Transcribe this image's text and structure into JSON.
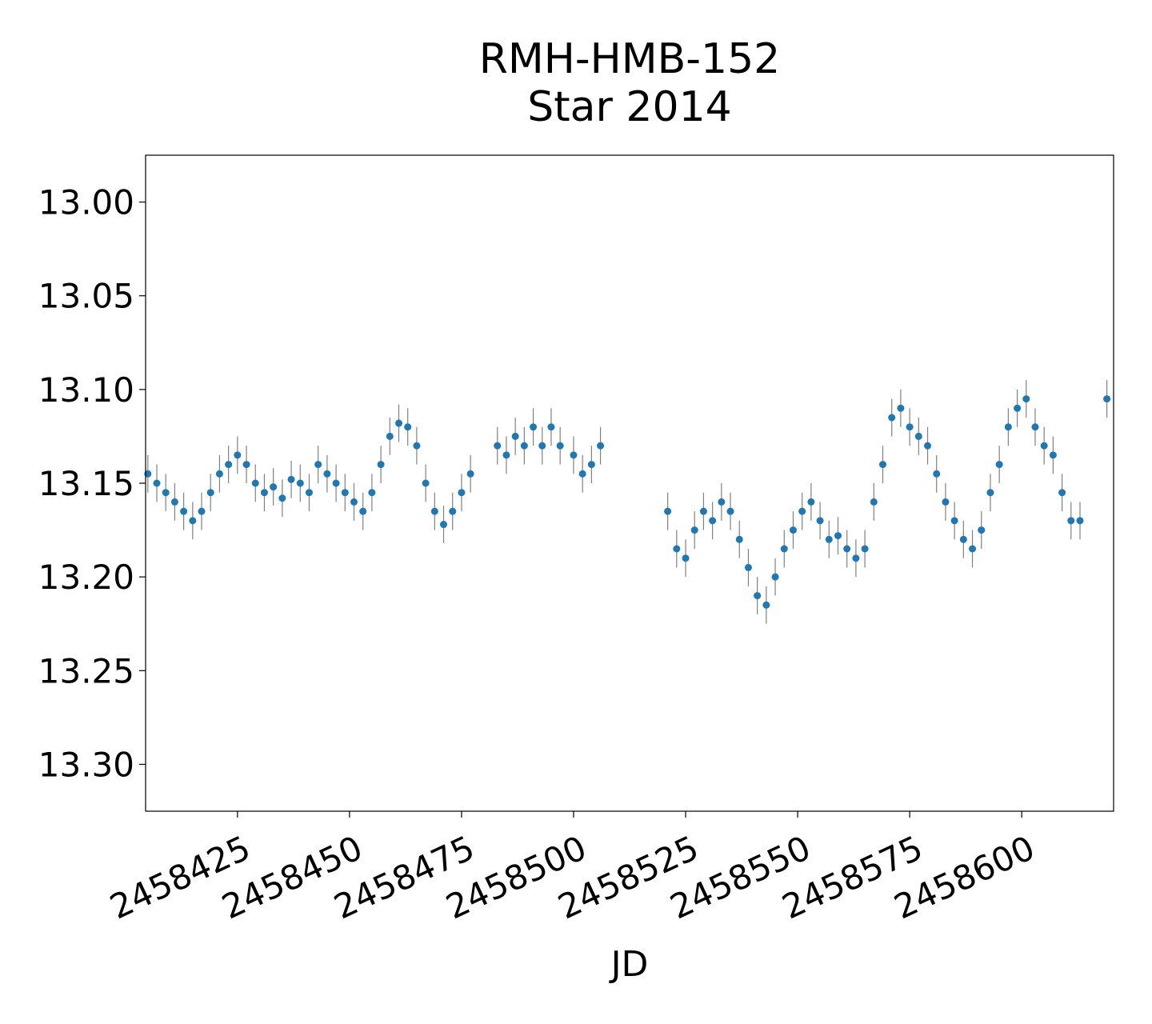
{
  "chart_data": {
    "type": "scatter",
    "title": "RMH-HMB-152",
    "subtitle": "Star 2014",
    "xlabel": "JD",
    "ylabel": "",
    "xlim": [
      2458404.5,
      2458620.5
    ],
    "ylim": [
      13.325,
      12.975
    ],
    "y_inverted": true,
    "x_ticks": [
      2458425,
      2458450,
      2458475,
      2458500,
      2458525,
      2458550,
      2458575,
      2458600
    ],
    "x_tick_labels": [
      "2458425",
      "2458450",
      "2458475",
      "2458500",
      "2458525",
      "2458550",
      "2458575",
      "2458600"
    ],
    "y_ticks": [
      13.0,
      13.05,
      13.1,
      13.15,
      13.2,
      13.25,
      13.3
    ],
    "y_tick_labels": [
      "13.00",
      "13.05",
      "13.10",
      "13.15",
      "13.20",
      "13.25",
      "13.30"
    ],
    "grid": false,
    "marker_color": "#1f77b4",
    "errorbar_color": "#808080",
    "error_typical": 0.01,
    "series": [
      {
        "x": [
          2458405,
          2458407,
          2458409,
          2458411,
          2458413,
          2458415,
          2458417,
          2458419,
          2458421,
          2458423,
          2458425,
          2458427,
          2458429,
          2458431,
          2458433,
          2458435,
          2458437,
          2458439,
          2458441,
          2458443,
          2458445,
          2458447,
          2458449,
          2458451,
          2458453,
          2458455,
          2458457,
          2458459,
          2458461,
          2458463,
          2458465,
          2458467,
          2458469,
          2458471,
          2458473,
          2458475,
          2458477,
          2458483,
          2458485,
          2458487,
          2458489,
          2458491,
          2458493,
          2458495,
          2458497,
          2458500,
          2458502,
          2458504,
          2458506,
          2458521,
          2458523,
          2458525,
          2458527,
          2458529,
          2458531,
          2458533,
          2458535,
          2458537,
          2458539,
          2458541,
          2458543,
          2458545,
          2458547,
          2458549,
          2458551,
          2458553,
          2458555,
          2458557,
          2458559,
          2458561,
          2458563,
          2458565,
          2458567,
          2458569,
          2458571,
          2458573,
          2458575,
          2458577,
          2458579,
          2458581,
          2458583,
          2458585,
          2458587,
          2458589,
          2458591,
          2458593,
          2458595,
          2458597,
          2458599,
          2458601,
          2458603,
          2458605,
          2458607,
          2458609,
          2458611,
          2458613,
          2458619
        ],
        "y": [
          13.145,
          13.15,
          13.155,
          13.16,
          13.165,
          13.17,
          13.165,
          13.155,
          13.145,
          13.14,
          13.135,
          13.14,
          13.15,
          13.155,
          13.152,
          13.158,
          13.148,
          13.15,
          13.155,
          13.14,
          13.145,
          13.15,
          13.155,
          13.16,
          13.165,
          13.155,
          13.14,
          13.125,
          13.118,
          13.12,
          13.13,
          13.15,
          13.165,
          13.172,
          13.165,
          13.155,
          13.145,
          13.13,
          13.135,
          13.125,
          13.13,
          13.12,
          13.13,
          13.12,
          13.13,
          13.135,
          13.145,
          13.14,
          13.13,
          13.165,
          13.185,
          13.19,
          13.175,
          13.165,
          13.17,
          13.16,
          13.165,
          13.18,
          13.195,
          13.21,
          13.215,
          13.2,
          13.185,
          13.175,
          13.165,
          13.16,
          13.17,
          13.18,
          13.178,
          13.185,
          13.19,
          13.185,
          13.16,
          13.14,
          13.115,
          13.11,
          13.12,
          13.125,
          13.13,
          13.145,
          13.16,
          13.17,
          13.18,
          13.185,
          13.175,
          13.155,
          13.14,
          13.12,
          13.11,
          13.105,
          13.12,
          13.13,
          13.135,
          13.155,
          13.17,
          13.17,
          13.105
        ]
      }
    ]
  }
}
